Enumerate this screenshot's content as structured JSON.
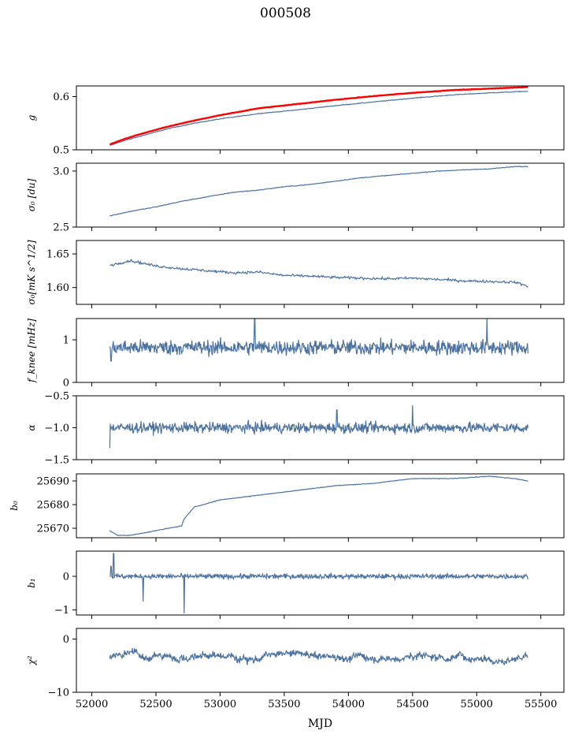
{
  "title": "000508",
  "xlabel": "MJD",
  "chart_data": [
    {
      "id": "g",
      "type": "line",
      "ylabel": "g",
      "yticks": [
        0.5,
        0.6
      ],
      "tick_labels": [
        "0.5",
        "0.6"
      ],
      "ylim": [
        0.5,
        0.62
      ],
      "series": [
        {
          "color": "#4C72A0",
          "x": [
            52140,
            52250,
            52400,
            52600,
            52800,
            53000,
            53300,
            53600,
            53900,
            54200,
            54500,
            54800,
            55100,
            55400
          ],
          "values": [
            0.508,
            0.517,
            0.527,
            0.54,
            0.55,
            0.558,
            0.568,
            0.575,
            0.583,
            0.59,
            0.597,
            0.603,
            0.607,
            0.61
          ]
        },
        {
          "color": "#FF0000",
          "x": [
            52140,
            52250,
            52400,
            52600,
            52800,
            53000,
            53300,
            53600,
            53900,
            54200,
            54500,
            54800,
            55100,
            55400
          ],
          "values": [
            0.51,
            0.52,
            0.531,
            0.544,
            0.555,
            0.565,
            0.578,
            0.586,
            0.594,
            0.601,
            0.607,
            0.612,
            0.615,
            0.618
          ]
        }
      ]
    },
    {
      "id": "sigma0",
      "type": "line",
      "ylabel": "σ₀ [du]",
      "yticks": [
        2.5,
        3.0
      ],
      "tick_labels": [
        "2.5",
        "3.0"
      ],
      "ylim": [
        2.5,
        3.07
      ],
      "series": [
        {
          "color": "#4C72A0",
          "x": [
            52140,
            52300,
            52500,
            52700,
            52900,
            53100,
            53300,
            53500,
            53700,
            53900,
            54100,
            54300,
            54500,
            54700,
            54900,
            55100,
            55300,
            55400
          ],
          "values": [
            2.6,
            2.64,
            2.68,
            2.73,
            2.77,
            2.81,
            2.83,
            2.86,
            2.88,
            2.91,
            2.94,
            2.96,
            2.98,
            3.0,
            3.01,
            3.02,
            3.04,
            3.04
          ]
        }
      ]
    },
    {
      "id": "sigma0-noise",
      "type": "line",
      "ylabel": "σ₀[mK s^1/2]",
      "yticks": [
        1.6,
        1.65
      ],
      "tick_labels": [
        "1.60",
        "1.65"
      ],
      "ylim": [
        1.575,
        1.67
      ],
      "series": [
        {
          "color": "#4C72A0",
          "x": [
            52140,
            52300,
            52500,
            52700,
            52900,
            53100,
            53300,
            53500,
            53700,
            53900,
            54100,
            54300,
            54500,
            54700,
            54900,
            55100,
            55300,
            55400
          ],
          "values": [
            1.633,
            1.64,
            1.632,
            1.628,
            1.625,
            1.622,
            1.623,
            1.618,
            1.617,
            1.615,
            1.614,
            1.613,
            1.614,
            1.612,
            1.61,
            1.609,
            1.608,
            1.602
          ]
        }
      ]
    },
    {
      "id": "fknee",
      "type": "line",
      "ylabel": "f_knee [mHz]",
      "yticks": [
        0,
        1
      ],
      "tick_labels": [
        "0",
        "1"
      ],
      "ylim": [
        0,
        1.5
      ],
      "series": [
        {
          "color": "#4C72A0",
          "x": [],
          "values": []
        }
      ]
    },
    {
      "id": "alpha",
      "type": "line",
      "ylabel": "α",
      "yticks": [
        -1.5,
        -1.0,
        -0.5
      ],
      "tick_labels": [
        "−1.5",
        "−1.0",
        "−0.5"
      ],
      "ylim": [
        -1.5,
        -0.5
      ],
      "series": [
        {
          "color": "#4C72A0",
          "x": [],
          "values": []
        }
      ]
    },
    {
      "id": "b0",
      "type": "line",
      "ylabel": "b₀",
      "yticks": [
        25670,
        25680,
        25690
      ],
      "tick_labels": [
        "25670",
        "25680",
        "25690"
      ],
      "ylim": [
        25666,
        25693
      ],
      "series": [
        {
          "color": "#4C72A0",
          "x": [
            52140,
            52200,
            52300,
            52500,
            52700,
            52720,
            52800,
            53000,
            53300,
            53600,
            53900,
            54200,
            54500,
            54800,
            55100,
            55300,
            55400
          ],
          "values": [
            25669,
            25667,
            25667,
            25669,
            25671,
            25674,
            25679,
            25682,
            25684,
            25686,
            25688,
            25689,
            25691,
            25691,
            25692,
            25691,
            25690
          ]
        }
      ]
    },
    {
      "id": "b1",
      "type": "line",
      "ylabel": "b₁",
      "yticks": [
        -1,
        0
      ],
      "tick_labels": [
        "−1",
        "0"
      ],
      "ylim": [
        -1.15,
        0.75
      ],
      "series": [
        {
          "color": "#4C72A0",
          "x": [],
          "values": []
        }
      ]
    },
    {
      "id": "chi2",
      "type": "line",
      "ylabel": "χ²",
      "yticks": [
        -10,
        0
      ],
      "tick_labels": [
        "−10",
        "0"
      ],
      "ylim": [
        -10,
        2
      ],
      "series": [
        {
          "color": "#4C72A0",
          "x": [],
          "values": []
        }
      ]
    }
  ],
  "x_axis": {
    "xlim": [
      51880,
      55680
    ],
    "ticks": [
      52000,
      52500,
      53000,
      53500,
      54000,
      54500,
      55000,
      55500
    ],
    "tick_labels": [
      "52000",
      "52500",
      "53000",
      "53500",
      "54000",
      "54500",
      "55000",
      "55500"
    ]
  }
}
